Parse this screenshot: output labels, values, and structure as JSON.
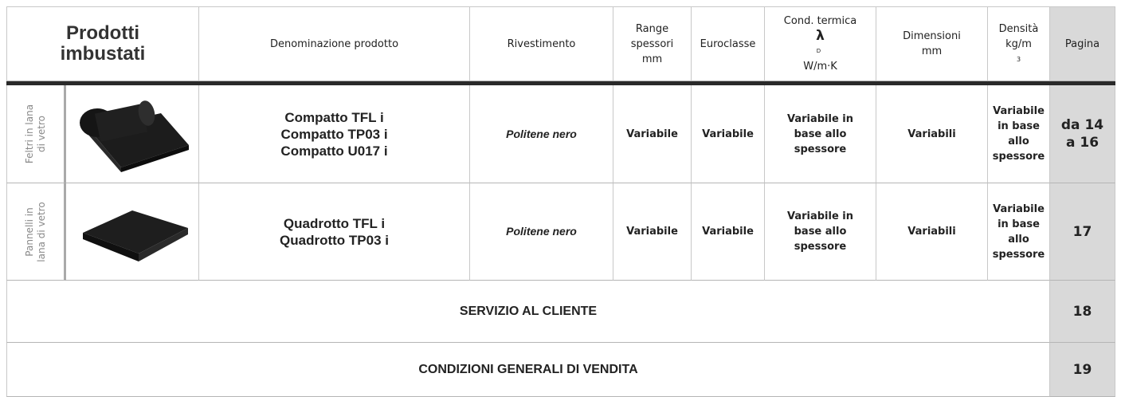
{
  "header": {
    "title_lines": [
      "Prodotti",
      "imbustati"
    ],
    "product_name": "Denominazione prodotto",
    "coating": "Rivestimento",
    "thickness_lines": [
      "Range",
      "spessori",
      "mm"
    ],
    "euroclass": "Euroclasse",
    "conductivity": {
      "label": "Cond. termica",
      "symbol": "λ",
      "subscript": "D",
      "unit": "W/m·K"
    },
    "dimensions_lines": [
      "Dimensioni",
      "mm"
    ],
    "density": {
      "label": "Densità",
      "unit": "kg/m",
      "superscript": "3"
    },
    "page": "Pagina"
  },
  "rows": [
    {
      "category_lines": [
        "Feltri in lana",
        "di vetro"
      ],
      "products": [
        "Compatto TFL i",
        "Compatto TP03 i",
        "Compatto U017 i"
      ],
      "coating": "Politene nero",
      "thickness": "Variabile",
      "euroclass": "Variabile",
      "conductivity_lines": [
        "Variabile in",
        "base allo",
        "spessore"
      ],
      "dimensions": "Variabili",
      "density_lines": [
        "Variabile",
        "in base",
        "allo",
        "spessore"
      ],
      "page_lines": [
        "da 14",
        "a 16"
      ]
    },
    {
      "category_lines": [
        "Pannelli in",
        "lana di vetro"
      ],
      "products": [
        "Quadrotto TFL i",
        "Quadrotto TP03 i"
      ],
      "coating": "Politene nero",
      "thickness": "Variabile",
      "euroclass": "Variabile",
      "conductivity_lines": [
        "Variabile in",
        "base allo",
        "spessore"
      ],
      "dimensions": "Variabili",
      "density_lines": [
        "Variabile",
        "in base",
        "allo",
        "spessore"
      ],
      "page_lines": [
        "17"
      ]
    }
  ],
  "footer_rows": [
    {
      "label": "SERVIZIO AL CLIENTE",
      "page": "18"
    },
    {
      "label": "CONDIZIONI GENERALI DI VENDITA",
      "page": "19"
    }
  ]
}
